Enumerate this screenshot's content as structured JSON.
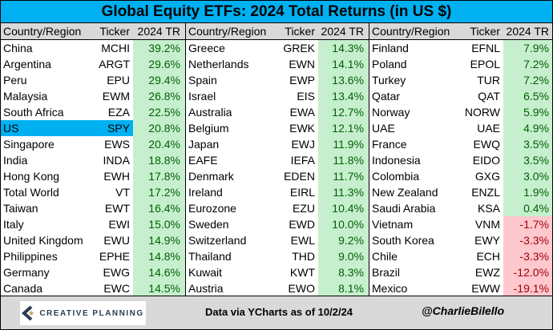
{
  "title": "Global Equity ETFs: 2024 Total Returns (in US $)",
  "chart_data": {
    "type": "table",
    "title": "Global Equity ETFs: 2024 Total Returns (in US $)",
    "headers": [
      "Country/Region",
      "Ticker",
      "2024 TR"
    ],
    "highlight": "US",
    "colors": {
      "positive_bg": "#c6efce",
      "negative_bg": "#ffc7ce",
      "highlight": "#00b0f0"
    },
    "blocks": [
      [
        [
          "China",
          "MCHI",
          "39.2%"
        ],
        [
          "Argentina",
          "ARGT",
          "29.6%"
        ],
        [
          "Peru",
          "EPU",
          "29.4%"
        ],
        [
          "Malaysia",
          "EWM",
          "26.8%"
        ],
        [
          "South Africa",
          "EZA",
          "22.5%"
        ],
        [
          "US",
          "SPY",
          "20.8%"
        ],
        [
          "Singapore",
          "EWS",
          "20.4%"
        ],
        [
          "India",
          "INDA",
          "18.8%"
        ],
        [
          "Hong Kong",
          "EWH",
          "17.8%"
        ],
        [
          "Total World",
          "VT",
          "17.2%"
        ],
        [
          "Taiwan",
          "EWT",
          "16.4%"
        ],
        [
          "Italy",
          "EWI",
          "15.0%"
        ],
        [
          "United Kingdom",
          "EWU",
          "14.9%"
        ],
        [
          "Philippines",
          "EPHE",
          "14.8%"
        ],
        [
          "Germany",
          "EWG",
          "14.6%"
        ],
        [
          "Canada",
          "EWC",
          "14.5%"
        ]
      ],
      [
        [
          "Greece",
          "GREK",
          "14.3%"
        ],
        [
          "Netherlands",
          "EWN",
          "14.1%"
        ],
        [
          "Spain",
          "EWP",
          "13.6%"
        ],
        [
          "Israel",
          "EIS",
          "13.4%"
        ],
        [
          "Australia",
          "EWA",
          "12.7%"
        ],
        [
          "Belgium",
          "EWK",
          "12.1%"
        ],
        [
          "Japan",
          "EWJ",
          "11.9%"
        ],
        [
          "EAFE",
          "IEFA",
          "11.8%"
        ],
        [
          "Denmark",
          "EDEN",
          "11.7%"
        ],
        [
          "Ireland",
          "EIRL",
          "11.3%"
        ],
        [
          "Eurozone",
          "EZU",
          "10.4%"
        ],
        [
          "Sweden",
          "EWD",
          "10.0%"
        ],
        [
          "Switzerland",
          "EWL",
          "9.2%"
        ],
        [
          "Thailand",
          "THD",
          "9.0%"
        ],
        [
          "Kuwait",
          "KWT",
          "8.3%"
        ],
        [
          "Austria",
          "EWO",
          "8.1%"
        ]
      ],
      [
        [
          "Finland",
          "EFNL",
          "7.9%"
        ],
        [
          "Poland",
          "EPOL",
          "7.2%"
        ],
        [
          "Turkey",
          "TUR",
          "7.2%"
        ],
        [
          "Qatar",
          "QAT",
          "6.5%"
        ],
        [
          "Norway",
          "NORW",
          "5.9%"
        ],
        [
          "UAE",
          "UAE",
          "4.9%"
        ],
        [
          "France",
          "EWQ",
          "3.5%"
        ],
        [
          "Indonesia",
          "EIDO",
          "3.5%"
        ],
        [
          "Colombia",
          "GXG",
          "3.0%"
        ],
        [
          "New Zealand",
          "ENZL",
          "1.9%"
        ],
        [
          "Saudi Arabia",
          "KSA",
          "0.4%"
        ],
        [
          "Vietnam",
          "VNM",
          "-1.7%"
        ],
        [
          "South Korea",
          "EWY",
          "-3.3%"
        ],
        [
          "Chile",
          "ECH",
          "-3.3%"
        ],
        [
          "Brazil",
          "EWZ",
          "-12.0%"
        ],
        [
          "Mexico",
          "EWW",
          "-19.1%"
        ]
      ]
    ]
  },
  "footer": {
    "logo": "CREATIVE PLANNING",
    "source": "Data via YCharts as of 10/2/24",
    "handle": "@CharlieBilello"
  }
}
